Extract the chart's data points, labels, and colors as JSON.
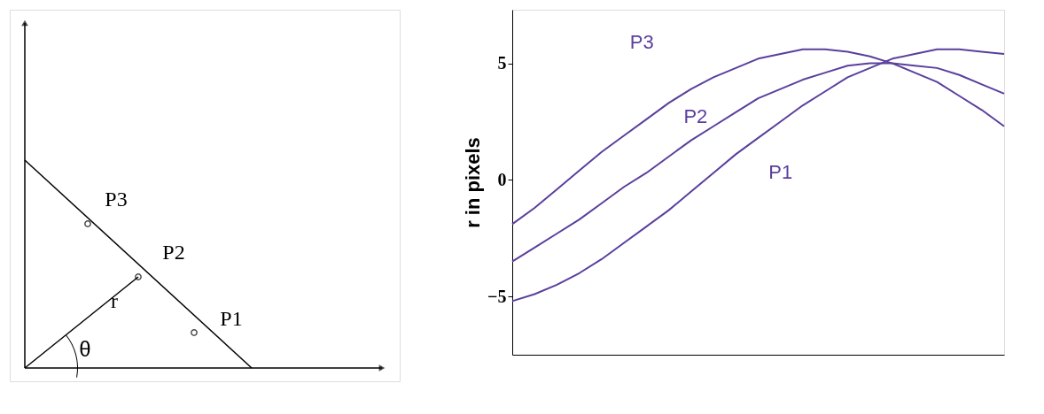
{
  "chart_data": [
    {
      "type": "other",
      "annotations": [
        "P3",
        "P2",
        "P1",
        "r",
        "θ"
      ]
    },
    {
      "type": "line",
      "ylabel": "r in pixels",
      "categories": [
        null,
        null,
        null,
        null,
        null,
        null,
        null,
        null,
        null,
        null,
        null,
        null,
        null,
        null,
        null,
        null,
        null,
        null,
        null,
        null,
        null,
        null,
        null
      ],
      "series": [
        {
          "name": "P3",
          "color": "#5a3f9c",
          "values": [
            -1.9,
            -1.2,
            -0.4,
            0.4,
            1.2,
            1.9,
            2.6,
            3.3,
            3.9,
            4.4,
            4.8,
            5.2,
            5.4,
            5.6,
            5.6,
            5.5,
            5.3,
            5.0,
            4.6,
            4.2,
            3.6,
            3.0,
            2.3
          ]
        },
        {
          "name": "P2",
          "color": "#5a3f9c",
          "values": [
            -3.5,
            -2.9,
            -2.3,
            -1.7,
            -1.0,
            -0.3,
            0.3,
            1.0,
            1.7,
            2.3,
            2.9,
            3.5,
            3.9,
            4.3,
            4.6,
            4.9,
            5.0,
            5.0,
            4.9,
            4.8,
            4.5,
            4.1,
            3.7
          ]
        },
        {
          "name": "P1",
          "color": "#5a3f9c",
          "values": [
            -5.2,
            -4.9,
            -4.5,
            -4.0,
            -3.4,
            -2.7,
            -2.0,
            -1.3,
            -0.5,
            0.3,
            1.1,
            1.8,
            2.5,
            3.2,
            3.8,
            4.4,
            4.8,
            5.2,
            5.4,
            5.6,
            5.6,
            5.5,
            5.4
          ]
        }
      ],
      "ylim": [
        -7.5,
        7.3
      ],
      "yticks": [
        -5,
        0,
        5
      ],
      "tick_labels": "y",
      "grid": false,
      "legend": false,
      "marker": "none",
      "line_style": "solid"
    }
  ]
}
